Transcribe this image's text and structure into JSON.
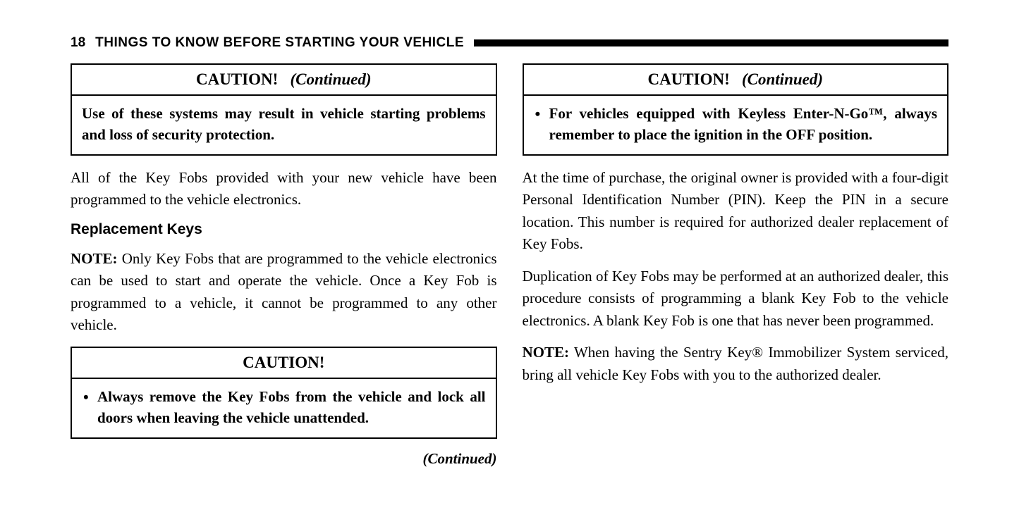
{
  "page_number": "18",
  "header_title": "THINGS TO KNOW BEFORE STARTING YOUR VEHICLE",
  "left": {
    "caution1": {
      "title_bold": "CAUTION!",
      "title_italic": "(Continued)",
      "body": "Use of these systems may result in vehicle starting problems and loss of security protection."
    },
    "para1": "All of the Key Fobs provided with your new vehicle have been programmed to the vehicle electronics.",
    "subhead": "Replacement Keys",
    "note_label": "NOTE:",
    "note_body": "Only Key Fobs that are programmed to the vehicle electronics can be used to start and operate the vehicle. Once a Key Fob is programmed to a vehicle, it cannot be programmed to any other vehicle.",
    "caution2": {
      "title_bold": "CAUTION!",
      "bullet1": "Always remove the Key Fobs from the vehicle and lock all doors when leaving the vehicle unattended."
    },
    "continued": "(Continued)"
  },
  "right": {
    "caution1": {
      "title_bold": "CAUTION!",
      "title_italic": "(Continued)",
      "bullet1": "For vehicles equipped with Keyless Enter-N-Go™, always remember to place the ignition in the OFF position."
    },
    "para1": "At the time of purchase, the original owner is provided with a four-digit Personal Identification Number (PIN). Keep the PIN in a secure location. This number is required for authorized dealer replacement of Key Fobs.",
    "para2": "Duplication of Key Fobs may be performed at an authorized dealer, this procedure consists of programming a blank Key Fob to the vehicle electronics. A blank Key Fob is one that has never been programmed.",
    "note_label": "NOTE:",
    "note_body": "When having the Sentry Key® Immobilizer System serviced, bring all vehicle Key Fobs with you to the authorized dealer."
  }
}
